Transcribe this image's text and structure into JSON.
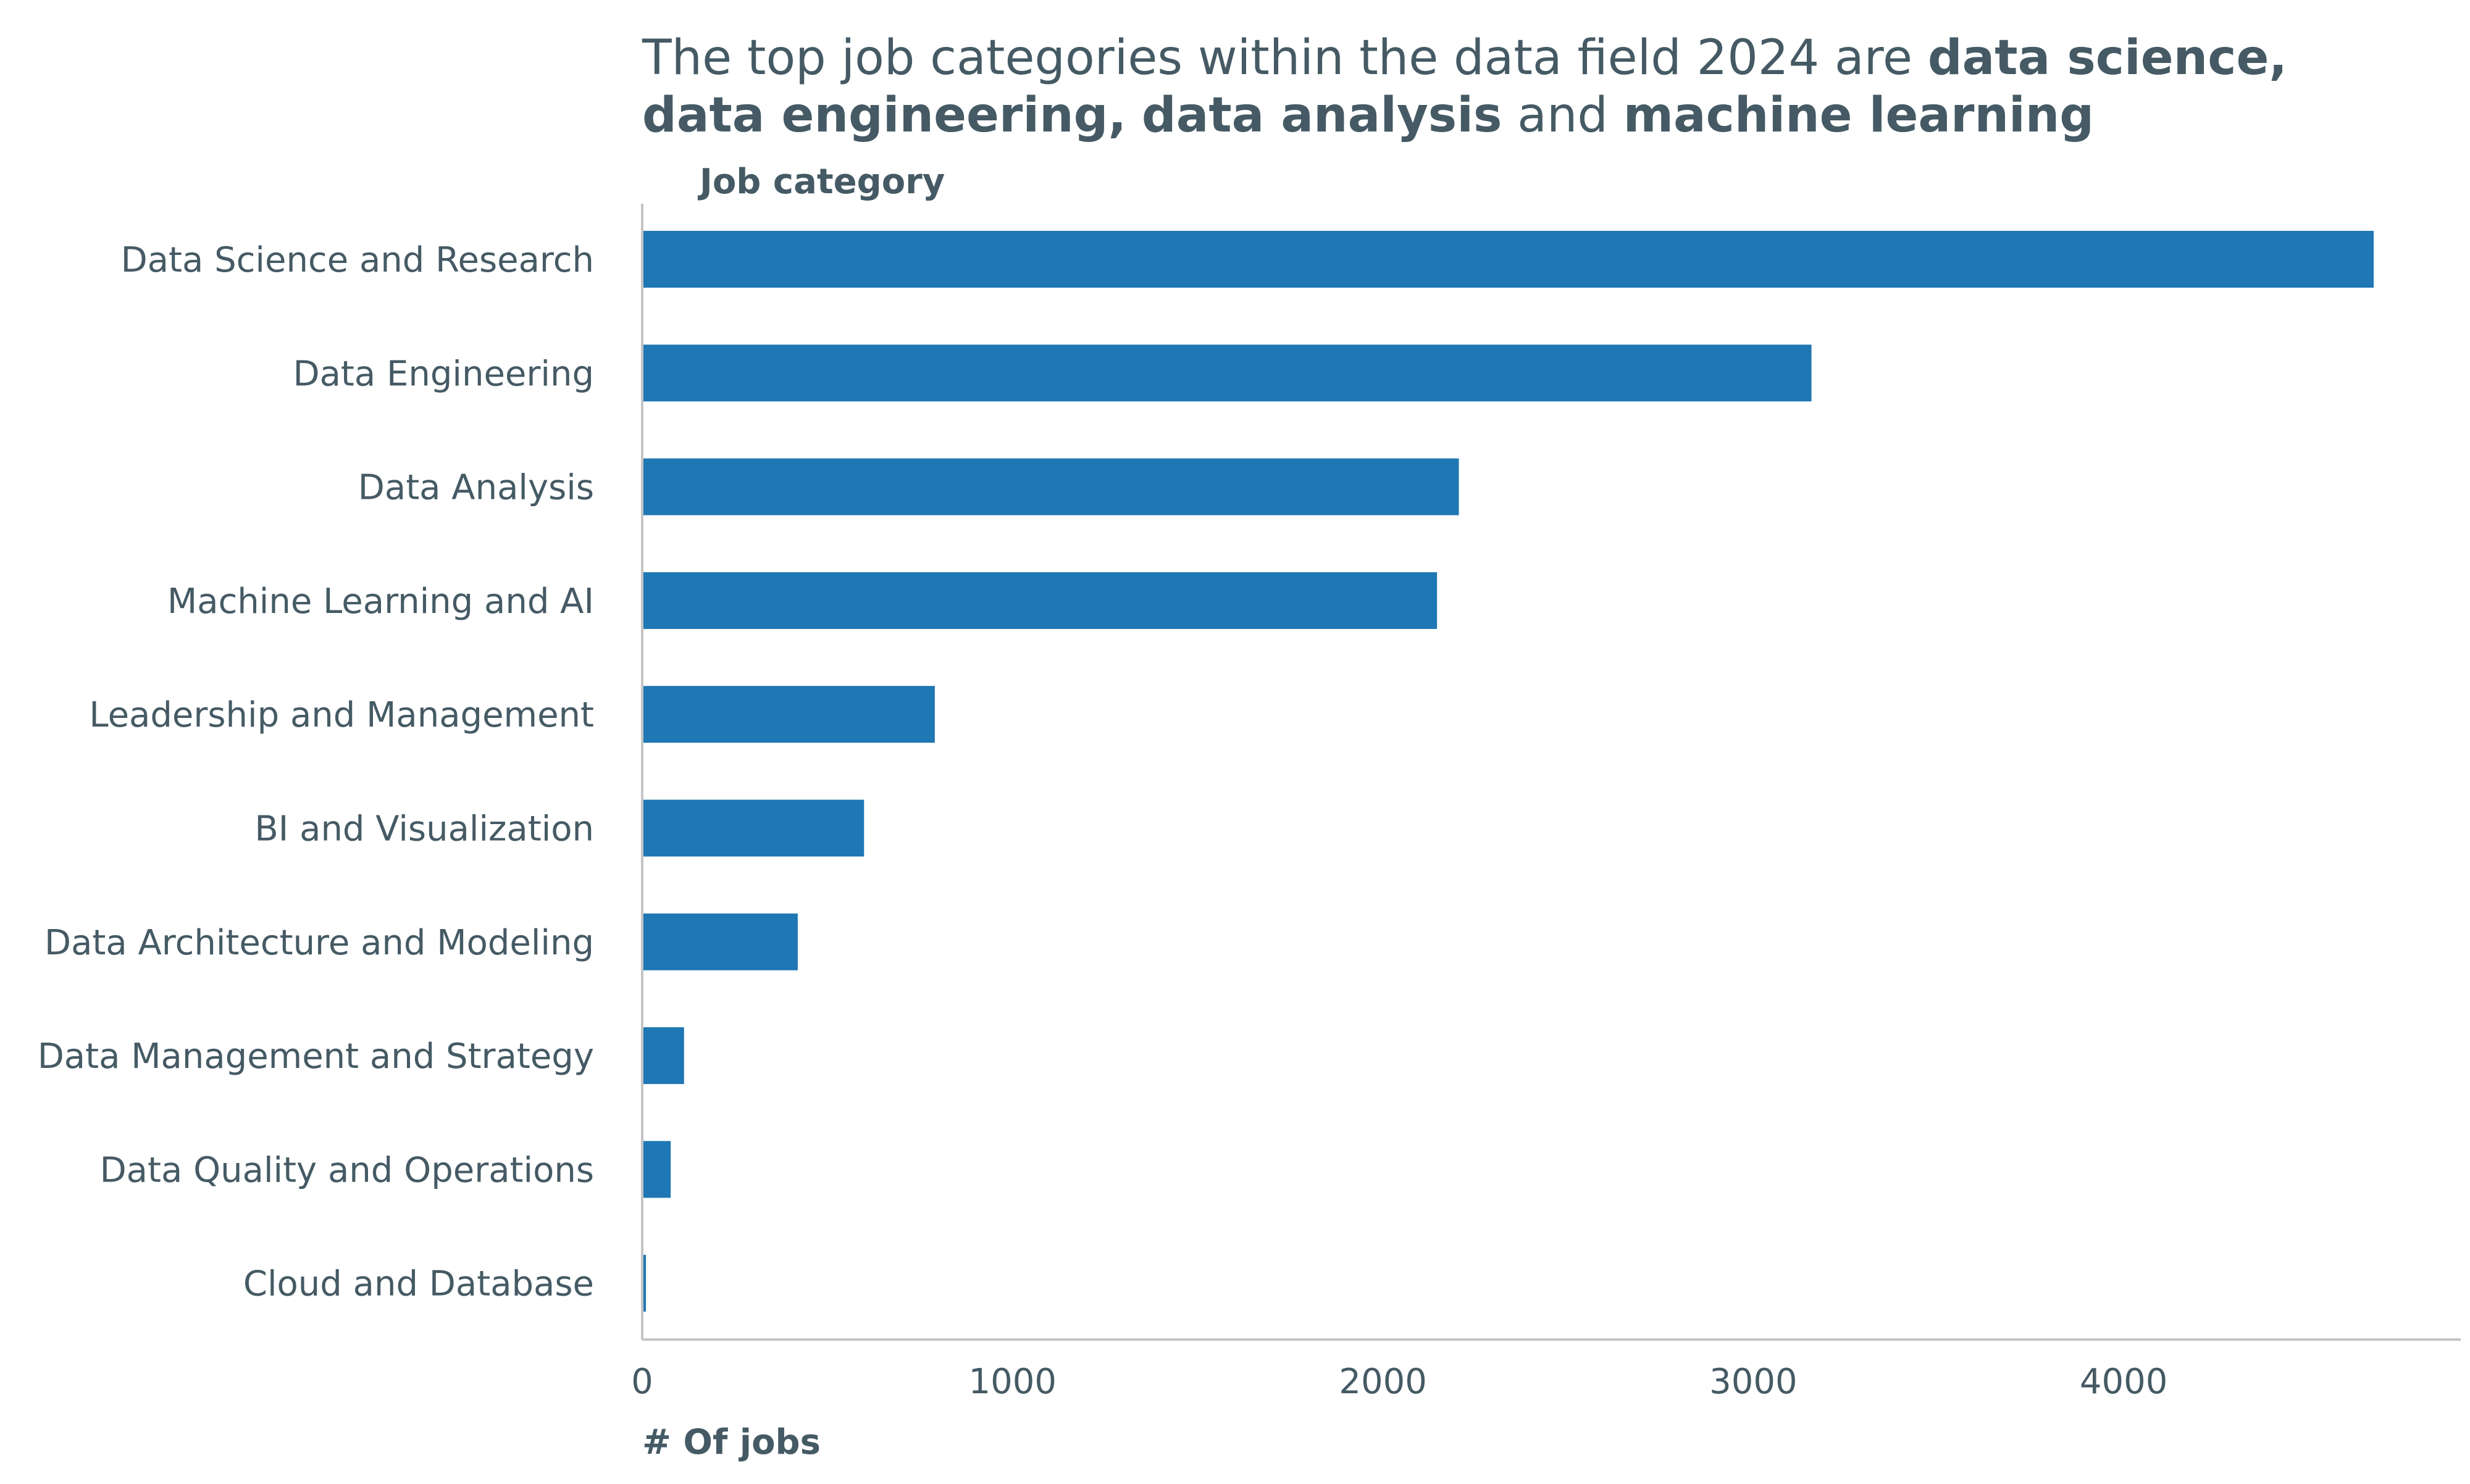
{
  "colors": {
    "bar": "#1f77b4",
    "text": "#455a64",
    "axis": "#c4c4c4"
  },
  "chart_data": {
    "type": "bar",
    "orientation": "horizontal",
    "title_segments": [
      [
        {
          "text": "The top job categories within the data field 2024 are ",
          "bold": false
        },
        {
          "text": "data science,",
          "bold": true
        }
      ],
      [
        {
          "text": "data engineering,",
          "bold": true
        },
        {
          "text": " ",
          "bold": false
        },
        {
          "text": "data analysis",
          "bold": true
        },
        {
          "text": " and ",
          "bold": false
        },
        {
          "text": "machine learning",
          "bold": true
        }
      ]
    ],
    "ylabel": "Job category",
    "xlabel": "# Of jobs",
    "categories": [
      "Data Science and Research",
      "Data Engineering",
      "Data Analysis",
      "Machine Learning and AI",
      "Leadership and Management",
      "BI and Visualization",
      "Data Architecture and Modeling",
      "Data Management and Strategy",
      "Data Quality and Operations",
      "Cloud and Database"
    ],
    "values": [
      4675,
      3157,
      2205,
      2146,
      790,
      599,
      420,
      113,
      77,
      10
    ],
    "xticks": [
      0,
      1000,
      2000,
      3000,
      4000
    ],
    "xlim": [
      0,
      4910
    ],
    "grid": false,
    "legend": null
  }
}
